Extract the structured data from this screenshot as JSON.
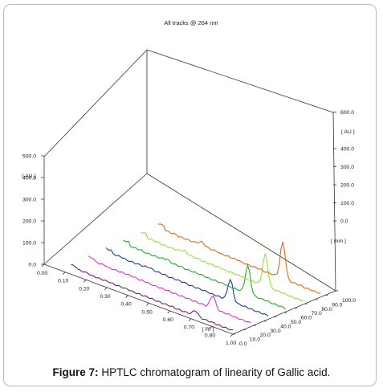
{
  "caption": {
    "label": "Figure 7:",
    "text": "HPTLC chromatogram of linearity of Gallic acid."
  },
  "chart_data": {
    "type": "line",
    "title": "All tracks @ 264 nm",
    "x_axis": {
      "label": "[ Rf ]",
      "range": [
        0.0,
        1.0
      ],
      "ticks": [
        "0.00",
        "0.10",
        "0.20",
        "0.30",
        "0.40",
        "0.50",
        "0.60",
        "0.70",
        "0.80",
        "1.00"
      ]
    },
    "y_axis_left": {
      "label": "[ AU ]",
      "range": [
        0,
        500
      ],
      "ticks": [
        "0.0",
        "100.0",
        "200.0",
        "300.0",
        "400.0",
        "500.0"
      ]
    },
    "y_axis_right": {
      "label": "[ AU ]",
      "range": [
        0,
        600
      ],
      "ticks": [
        "0.0",
        "100.0",
        "200.0",
        "300.0",
        "400.0",
        "600.0"
      ]
    },
    "depth_axis": {
      "label": "[ mm ]",
      "range": [
        0,
        100
      ],
      "ticks": [
        "0.0",
        "10.0",
        "20.0",
        "30.0",
        "40.0",
        "50.0",
        "60.0",
        "70.0",
        "80.0",
        "90.0",
        "100.0"
      ]
    },
    "series": [
      {
        "color": "#7a1f6e",
        "depth": 0,
        "peak_rf": 0.5,
        "baseline": [
          22,
          18,
          14,
          12,
          10,
          8,
          6,
          4,
          2,
          0
        ],
        "peak_height": 25
      },
      {
        "color": "#e030c8",
        "depth": 1,
        "peak_rf": 0.5,
        "baseline": [
          24,
          20,
          16,
          13,
          11,
          9,
          7,
          5,
          3,
          0
        ],
        "peak_height": 60
      },
      {
        "color": "#1e3aa0",
        "depth": 2,
        "peak_rf": 0.5,
        "baseline": [
          26,
          22,
          18,
          15,
          12,
          9,
          7,
          5,
          3,
          0
        ],
        "peak_height": 100
      },
      {
        "color": "#22aa33",
        "depth": 3,
        "peak_rf": 0.5,
        "baseline": [
          28,
          24,
          20,
          16,
          13,
          10,
          7,
          5,
          3,
          0
        ],
        "peak_height": 130
      },
      {
        "color": "#8fe33a",
        "depth": 4,
        "peak_rf": 0.5,
        "baseline": [
          30,
          26,
          22,
          18,
          14,
          11,
          8,
          5,
          3,
          0
        ],
        "peak_height": 150
      },
      {
        "color": "#e06a1a",
        "depth": 5,
        "peak_rf": 0.5,
        "baseline": [
          34,
          28,
          24,
          20,
          16,
          12,
          9,
          6,
          3,
          0
        ],
        "peak_height": 170
      }
    ],
    "grid": false,
    "legend": "none"
  }
}
